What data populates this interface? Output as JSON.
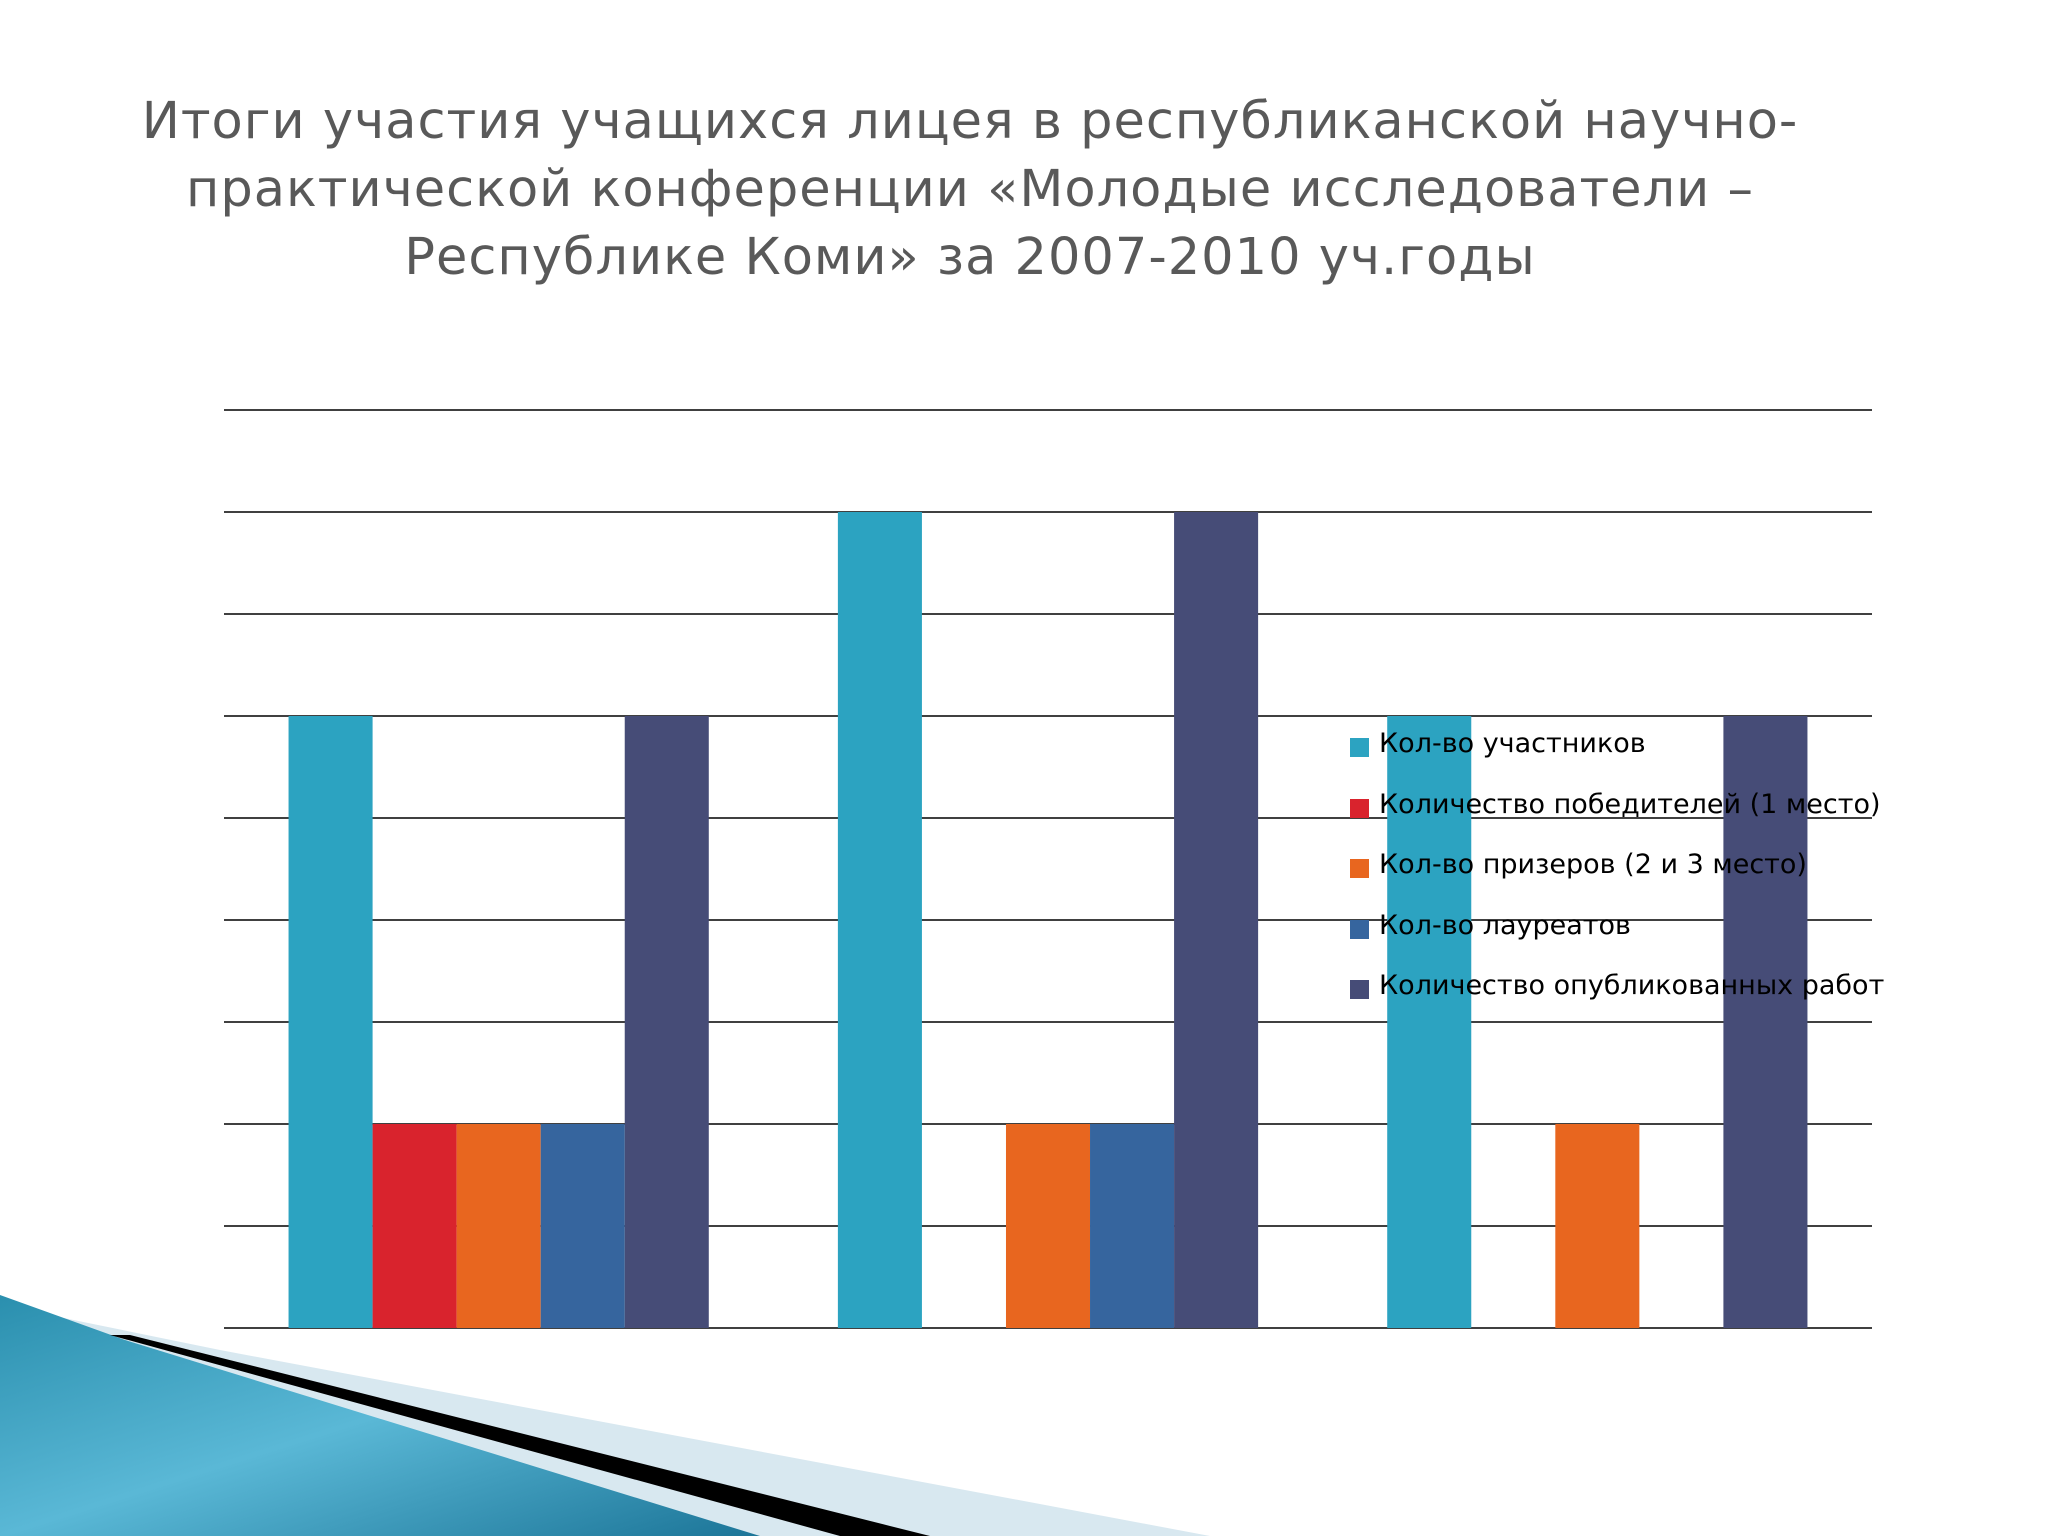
{
  "slide": {
    "title": "Итоги участия учащихся лицея в республиканской научно-практической конференции «Молодые исследователи – Республике Коми» за 2007-2010 уч.годы"
  },
  "chart_data": {
    "type": "bar",
    "title": "",
    "xlabel": "",
    "ylabel": "",
    "categories": [
      "",
      "",
      ""
    ],
    "ylim": [
      0,
      9
    ],
    "grid": true,
    "legend_position": "right",
    "series": [
      {
        "name": "Кол-во участников",
        "color": "#2ca3c1",
        "values": [
          6,
          8,
          6
        ]
      },
      {
        "name": "Количество победителей (1 место)",
        "color": "#d9232d",
        "values": [
          2,
          0,
          0
        ]
      },
      {
        "name": "Кол-во призеров (2 и 3 место)",
        "color": "#e8661f",
        "values": [
          2,
          2,
          2
        ]
      },
      {
        "name": "Кол-во лауреатов",
        "color": "#36659e",
        "values": [
          2,
          2,
          0
        ]
      },
      {
        "name": "Количество опубликованных работ",
        "color": "#464c77",
        "values": [
          6,
          8,
          6
        ]
      }
    ]
  }
}
